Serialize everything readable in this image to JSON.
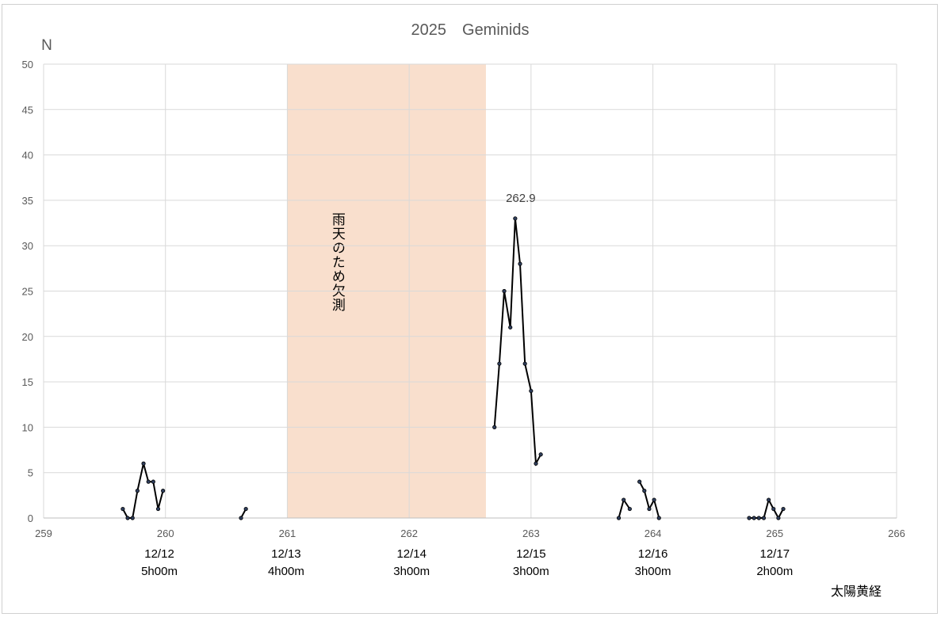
{
  "chart_data": {
    "type": "line",
    "title": "2025　Geminids",
    "ylabel": "N",
    "xlabel": "太陽黄経",
    "xlim": [
      259,
      266
    ],
    "ylim": [
      0,
      50
    ],
    "x_ticks": [
      259,
      260,
      261,
      262,
      263,
      264,
      265,
      266
    ],
    "y_ticks": [
      0,
      5,
      10,
      15,
      20,
      25,
      30,
      35,
      40,
      45,
      50
    ],
    "grid": true,
    "line_color": "#000000",
    "marker_color": "#2f3e5c",
    "shaded_region": {
      "x_start": 261.0,
      "x_end": 262.63,
      "color": "#f9dfcd",
      "label": "雨天のため欠測"
    },
    "peak_annotation": {
      "x": 262.87,
      "y": 33,
      "text": "262.9"
    },
    "date_labels": [
      {
        "x": 259.95,
        "date": "12/12",
        "duration": "5h00m"
      },
      {
        "x": 260.99,
        "date": "12/13",
        "duration": "4h00m"
      },
      {
        "x": 262.02,
        "date": "12/14",
        "duration": "3h00m"
      },
      {
        "x": 263.0,
        "date": "12/15",
        "duration": "3h00m"
      },
      {
        "x": 264.0,
        "date": "12/16",
        "duration": "3h00m"
      },
      {
        "x": 265.0,
        "date": "12/17",
        "duration": "2h00m"
      }
    ],
    "segments": [
      {
        "points": [
          [
            259.65,
            1
          ],
          [
            259.69,
            0
          ],
          [
            259.73,
            0
          ],
          [
            259.77,
            3
          ],
          [
            259.82,
            6
          ],
          [
            259.86,
            4
          ],
          [
            259.9,
            4
          ],
          [
            259.94,
            1
          ],
          [
            259.98,
            3
          ]
        ]
      },
      {
        "points": [
          [
            260.62,
            0
          ],
          [
            260.66,
            1
          ]
        ]
      },
      {
        "points": [
          [
            262.7,
            10
          ],
          [
            262.74,
            17
          ],
          [
            262.78,
            25
          ],
          [
            262.83,
            21
          ],
          [
            262.87,
            33
          ],
          [
            262.91,
            28
          ],
          [
            262.95,
            17
          ],
          [
            263.0,
            14
          ],
          [
            263.04,
            6
          ],
          [
            263.08,
            7
          ]
        ]
      },
      {
        "points": [
          [
            263.72,
            0
          ],
          [
            263.76,
            2
          ],
          [
            263.81,
            1
          ]
        ]
      },
      {
        "points": [
          [
            263.89,
            4
          ],
          [
            263.93,
            3
          ],
          [
            263.97,
            1
          ],
          [
            264.01,
            2
          ],
          [
            264.05,
            0
          ]
        ]
      },
      {
        "points": [
          [
            264.79,
            0
          ],
          [
            264.83,
            0
          ],
          [
            264.87,
            0
          ],
          [
            264.91,
            0
          ],
          [
            264.95,
            2
          ],
          [
            264.99,
            1
          ],
          [
            265.03,
            0
          ],
          [
            265.07,
            1
          ]
        ]
      }
    ]
  }
}
